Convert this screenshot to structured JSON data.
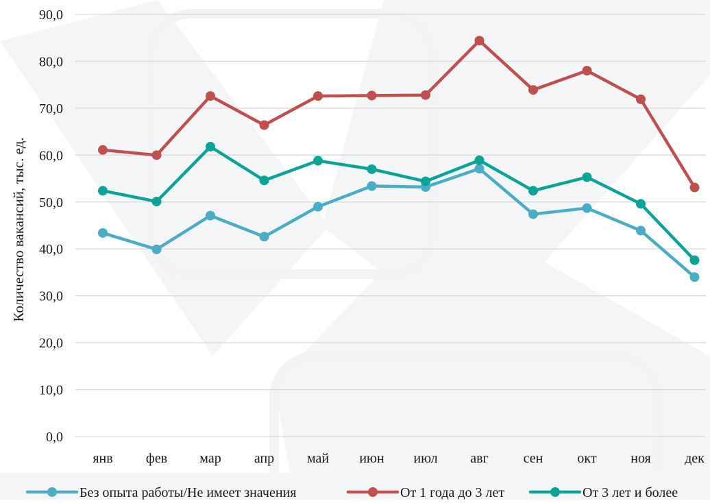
{
  "chart_data": {
    "type": "line",
    "title": "",
    "xlabel": "",
    "ylabel": "Количество вакансий, тыс. ед.",
    "ylim": [
      0,
      90
    ],
    "yticks": [
      "0,0",
      "10,0",
      "20,0",
      "30,0",
      "40,0",
      "50,0",
      "60,0",
      "70,0",
      "80,0",
      "90,0"
    ],
    "categories": [
      "янв",
      "фев",
      "мар",
      "апр",
      "май",
      "июн",
      "июл",
      "авг",
      "сен",
      "окт",
      "ноя",
      "дек"
    ],
    "grid": true,
    "legend_position": "bottom",
    "series": [
      {
        "name": "Без опыта работы/Не имеет значения",
        "color": "#4bacc6",
        "values": [
          43.4,
          39.9,
          47.1,
          42.6,
          49.0,
          53.4,
          53.2,
          57.1,
          47.4,
          48.7,
          43.9,
          34.0
        ]
      },
      {
        "name": "От 1 года до 3 лет",
        "color": "#c0504d",
        "values": [
          61.1,
          60.0,
          72.6,
          66.4,
          72.6,
          72.7,
          72.8,
          84.4,
          73.9,
          78.0,
          71.9,
          53.1
        ]
      },
      {
        "name": "От 3 лет и более",
        "color": "#0aa496",
        "values": [
          52.4,
          50.1,
          61.8,
          54.6,
          58.8,
          57.0,
          54.4,
          58.9,
          52.4,
          55.3,
          49.6,
          37.6
        ]
      }
    ]
  }
}
